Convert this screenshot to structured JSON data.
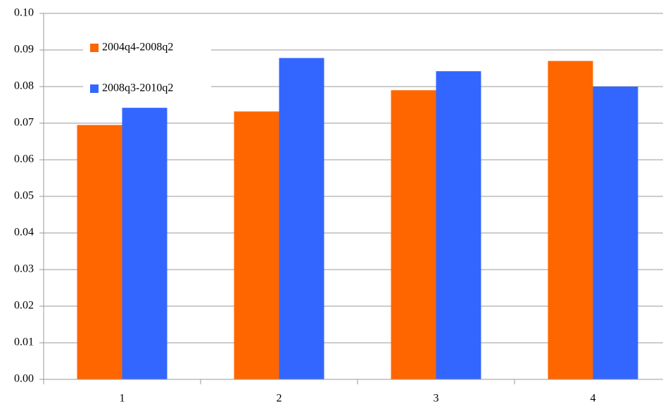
{
  "chart_data": {
    "type": "bar",
    "categories": [
      "1",
      "2",
      "3",
      "4"
    ],
    "series": [
      {
        "name": "2004q4-2008q2",
        "color": "#ff6600",
        "values": [
          0.0695,
          0.0732,
          0.079,
          0.087
        ]
      },
      {
        "name": "2008q3-2010q2",
        "color": "#3366ff",
        "values": [
          0.0742,
          0.0878,
          0.0842,
          0.08
        ]
      }
    ],
    "ylim": [
      0,
      0.1
    ],
    "yticks": [
      {
        "value": 0,
        "label": "0.00"
      },
      {
        "value": 0.01,
        "label": "0.01"
      },
      {
        "value": 0.02,
        "label": "0.02"
      },
      {
        "value": 0.03,
        "label": "0.03"
      },
      {
        "value": 0.04,
        "label": "0.04"
      },
      {
        "value": 0.05,
        "label": "0.05"
      },
      {
        "value": 0.06,
        "label": "0.06"
      },
      {
        "value": 0.07,
        "label": "0.07"
      },
      {
        "value": 0.08,
        "label": "0.08"
      },
      {
        "value": 0.09,
        "label": "0.09"
      },
      {
        "value": 0.1,
        "label": "0.10"
      }
    ],
    "grid": true,
    "legend": "top-left"
  }
}
